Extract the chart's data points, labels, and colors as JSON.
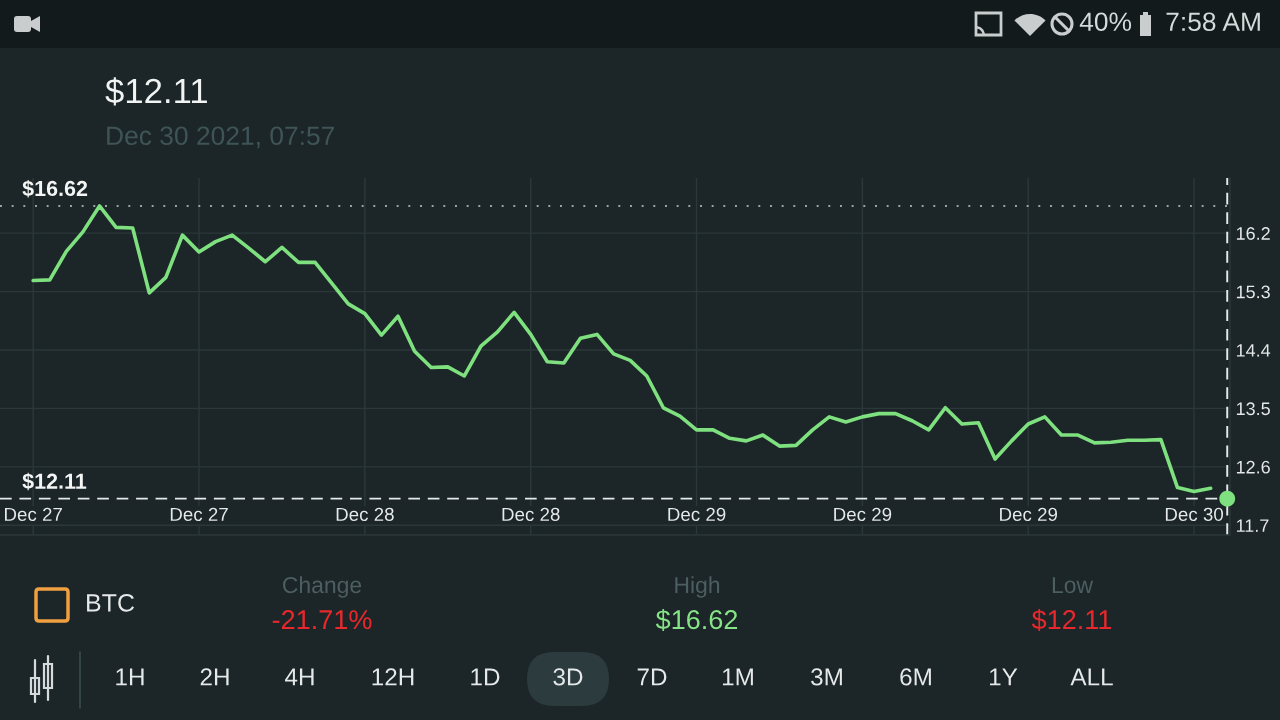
{
  "chart_data": {
    "type": "line",
    "title": "$12.11",
    "subtitle": "Dec 30 2021, 07:57",
    "annotations": [
      "40%",
      "7:58 AM",
      "BTC",
      "Change",
      "-21.71%",
      "High",
      "$16.62",
      "Low",
      "$12.11",
      "1H",
      "2H",
      "4H",
      "12H",
      "1D",
      "3D",
      "7D",
      "1M",
      "3M",
      "6M",
      "1Y",
      "ALL"
    ],
    "series": [
      {
        "color": "#7ee07e",
        "x": [
          "2021-12-27T10:00",
          "2021-12-27T11:00",
          "2021-12-27T12:00",
          "2021-12-27T13:00",
          "2021-12-27T14:00",
          "2021-12-27T15:00",
          "2021-12-27T16:00",
          "2021-12-27T17:00",
          "2021-12-27T18:00",
          "2021-12-27T19:00",
          "2021-12-27T20:00",
          "2021-12-27T21:00",
          "2021-12-27T22:00",
          "2021-12-27T23:00",
          "2021-12-28T00:00",
          "2021-12-28T01:00",
          "2021-12-28T02:00",
          "2021-12-28T03:00",
          "2021-12-28T04:00",
          "2021-12-28T05:00",
          "2021-12-28T06:00",
          "2021-12-28T07:00",
          "2021-12-28T08:00",
          "2021-12-28T09:00",
          "2021-12-28T10:00",
          "2021-12-28T11:00",
          "2021-12-28T12:00",
          "2021-12-28T13:00",
          "2021-12-28T14:00",
          "2021-12-28T15:00",
          "2021-12-28T16:00",
          "2021-12-28T17:00",
          "2021-12-28T18:00",
          "2021-12-28T19:00",
          "2021-12-28T20:00",
          "2021-12-28T21:00",
          "2021-12-28T22:00",
          "2021-12-28T23:00",
          "2021-12-29T00:00",
          "2021-12-29T01:00",
          "2021-12-29T02:00",
          "2021-12-29T03:00",
          "2021-12-29T04:00",
          "2021-12-29T05:00",
          "2021-12-29T06:00",
          "2021-12-29T07:00",
          "2021-12-29T08:00",
          "2021-12-29T09:00",
          "2021-12-29T10:00",
          "2021-12-29T11:00",
          "2021-12-29T12:00",
          "2021-12-29T13:00",
          "2021-12-29T14:00",
          "2021-12-29T15:00",
          "2021-12-29T16:00",
          "2021-12-29T17:00",
          "2021-12-29T18:00",
          "2021-12-29T19:00",
          "2021-12-29T20:00",
          "2021-12-29T21:00",
          "2021-12-29T22:00",
          "2021-12-29T23:00",
          "2021-12-30T00:00",
          "2021-12-30T01:00",
          "2021-12-30T02:00",
          "2021-12-30T03:00",
          "2021-12-30T04:00",
          "2021-12-30T05:00",
          "2021-12-30T06:00",
          "2021-12-30T07:00",
          "2021-12-30T08:00",
          "2021-12-30T09:00"
        ],
        "values": [
          15.47,
          15.48,
          15.92,
          16.22,
          16.62,
          16.29,
          16.28,
          15.28,
          15.52,
          16.17,
          15.91,
          16.07,
          16.17,
          15.97,
          15.76,
          15.98,
          15.75,
          15.75,
          15.43,
          15.11,
          14.96,
          14.63,
          14.92,
          14.38,
          14.13,
          14.14,
          14.0,
          14.46,
          14.68,
          14.98,
          14.64,
          14.22,
          14.2,
          14.58,
          14.64,
          14.34,
          14.24,
          14.0,
          13.51,
          13.38,
          13.17,
          13.17,
          13.04,
          13.0,
          13.09,
          12.92,
          12.93,
          13.17,
          13.37,
          13.29,
          13.37,
          13.42,
          13.42,
          13.31,
          13.17,
          13.51,
          13.26,
          13.28,
          12.72,
          13.0,
          13.26,
          13.37,
          13.09,
          13.09,
          12.97,
          12.98,
          13.01,
          13.01,
          13.02,
          12.28,
          12.22,
          12.27
        ]
      },
      {
        "type": "scatter",
        "color": "#7ee07e",
        "x": [
          "2021-12-30T10:00"
        ],
        "values": [
          12.11
        ]
      }
    ],
    "xlim": [
      "2021-12-27T08:00",
      "2021-12-30T10:10"
    ],
    "xticks": [
      {
        "value": "2021-12-27T10:00",
        "label": "Dec 27"
      },
      {
        "value": "2021-12-27T20:00",
        "label": "Dec 27"
      },
      {
        "value": "2021-12-28T06:00",
        "label": "Dec 28"
      },
      {
        "value": "2021-12-28T16:00",
        "label": "Dec 28"
      },
      {
        "value": "2021-12-29T02:00",
        "label": "Dec 29"
      },
      {
        "value": "2021-12-29T12:00",
        "label": "Dec 29"
      },
      {
        "value": "2021-12-29T22:00",
        "label": "Dec 29"
      },
      {
        "value": "2021-12-30T08:00",
        "label": "Dec 30"
      }
    ],
    "ylim": [
      11.55,
      17.05
    ],
    "yticks": [
      11.7,
      12.6,
      13.5,
      14.4,
      15.3,
      16.2
    ],
    "grid": true,
    "line_style": "solid",
    "ref_lines": [
      {
        "axis": "y",
        "value": 16.62,
        "label": "$16.62",
        "color": "#9aa5a6",
        "line_style": "dotted"
      },
      {
        "axis": "y",
        "value": 12.11,
        "label": "$12.11",
        "color": "#e6e9e9",
        "line_style": "dashed"
      },
      {
        "axis": "x",
        "value": "2021-12-30T10:00",
        "color": "#e6e9e9",
        "line_style": "dashed"
      }
    ]
  }
}
